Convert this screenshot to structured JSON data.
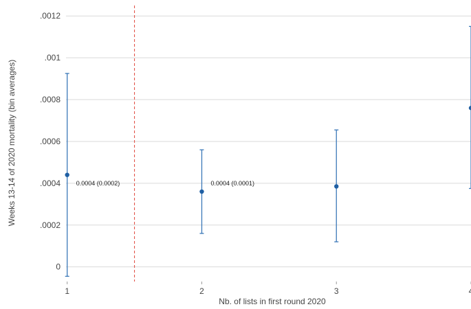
{
  "chart_data": {
    "type": "scatter",
    "title": "",
    "xlabel": "Nb. of lists in first round 2020",
    "ylabel": "Weeks 13-14 of 2020 mortality (bin averages)",
    "xlim": [
      0.93,
      4.0
    ],
    "ylim": [
      -7e-05,
      0.00125
    ],
    "x_ticks": [
      1,
      2,
      3,
      4
    ],
    "x_tick_labels": [
      "1",
      "2",
      "3",
      "4"
    ],
    "y_ticks": [
      0,
      0.0002,
      0.0004,
      0.0006,
      0.0008,
      0.001,
      0.0012
    ],
    "y_tick_labels": [
      "0",
      ".0002",
      ".0004",
      ".0006",
      ".0008",
      ".001",
      ".0012"
    ],
    "grid": true,
    "series": [
      {
        "points": [
          {
            "x": 1,
            "y": 0.00044,
            "ci_low": -4.5e-05,
            "ci_high": 0.000925
          },
          {
            "x": 2,
            "y": 0.00036,
            "ci_low": 0.00016,
            "ci_high": 0.00056
          },
          {
            "x": 3,
            "y": 0.000385,
            "ci_low": 0.00012,
            "ci_high": 0.000655
          },
          {
            "x": 4,
            "y": 0.00076,
            "ci_low": 0.000375,
            "ci_high": 0.00115
          }
        ]
      }
    ],
    "threshold_line": {
      "x": 1.5,
      "style": "dashed"
    },
    "annotations": [
      {
        "x": 1,
        "y": 0.0004,
        "text": "0.0004 (0.0002)"
      },
      {
        "x": 2,
        "y": 0.0004,
        "text": "0.0004 (0.0001)"
      }
    ],
    "colors": {
      "series": "#1f5fa3",
      "errorbar": "#3a78b8",
      "threshold": "#e0453a",
      "grid": "#d9d9d9",
      "text": "#444444"
    }
  }
}
